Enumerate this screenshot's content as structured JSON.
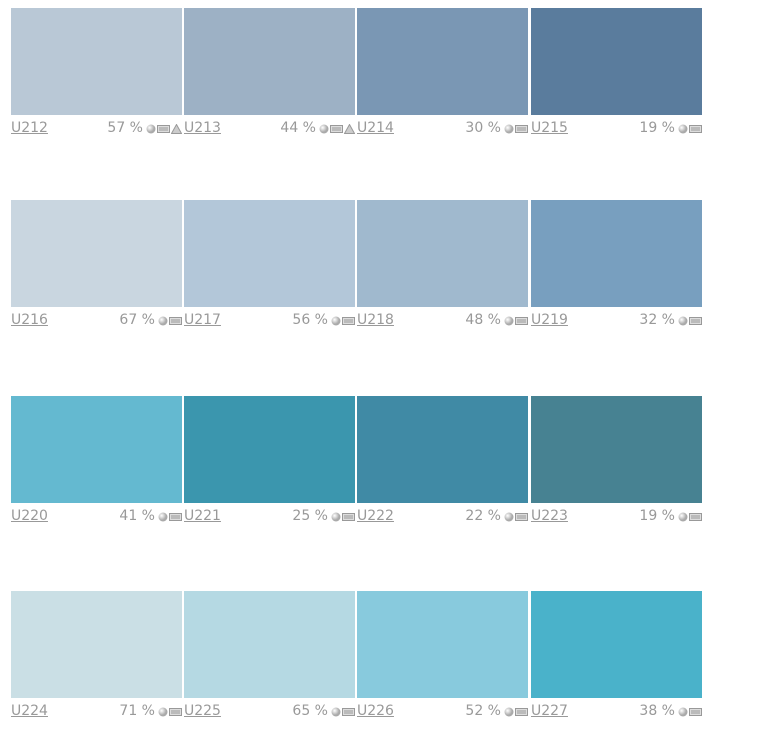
{
  "swatches": [
    {
      "code": "U212",
      "percent": "57 %",
      "color": "#b9c8d6",
      "icons": [
        "sphere",
        "panel",
        "triangle"
      ]
    },
    {
      "code": "U213",
      "percent": "44 %",
      "color": "#9db1c5",
      "icons": [
        "sphere",
        "panel",
        "triangle"
      ]
    },
    {
      "code": "U214",
      "percent": "30 %",
      "color": "#7a97b4",
      "icons": [
        "sphere",
        "panel"
      ]
    },
    {
      "code": "U215",
      "percent": "19 %",
      "color": "#5a7c9d",
      "icons": [
        "sphere",
        "panel"
      ]
    },
    {
      "code": "U216",
      "percent": "67 %",
      "color": "#c9d6e0",
      "icons": [
        "sphere",
        "panel"
      ]
    },
    {
      "code": "U217",
      "percent": "56 %",
      "color": "#b3c7d9",
      "icons": [
        "sphere",
        "panel"
      ]
    },
    {
      "code": "U218",
      "percent": "48 %",
      "color": "#a0b9ce",
      "icons": [
        "sphere",
        "panel"
      ]
    },
    {
      "code": "U219",
      "percent": "32 %",
      "color": "#789fbf",
      "icons": [
        "sphere",
        "panel"
      ]
    },
    {
      "code": "U220",
      "percent": "41 %",
      "color": "#64b9d0",
      "icons": [
        "sphere",
        "panel"
      ]
    },
    {
      "code": "U221",
      "percent": "25 %",
      "color": "#3b96ae",
      "icons": [
        "sphere",
        "panel"
      ]
    },
    {
      "code": "U222",
      "percent": "22 %",
      "color": "#408aa5",
      "icons": [
        "sphere",
        "panel"
      ]
    },
    {
      "code": "U223",
      "percent": "19 %",
      "color": "#478292",
      "icons": [
        "sphere",
        "panel"
      ]
    },
    {
      "code": "U224",
      "percent": "71 %",
      "color": "#cadfe5",
      "icons": [
        "sphere",
        "panel"
      ]
    },
    {
      "code": "U225",
      "percent": "65 %",
      "color": "#b5d9e3",
      "icons": [
        "sphere",
        "panel"
      ]
    },
    {
      "code": "U226",
      "percent": "52 %",
      "color": "#88cadd",
      "icons": [
        "sphere",
        "panel"
      ]
    },
    {
      "code": "U227",
      "percent": "38 %",
      "color": "#4ab2ca",
      "icons": [
        "sphere",
        "panel"
      ]
    }
  ]
}
